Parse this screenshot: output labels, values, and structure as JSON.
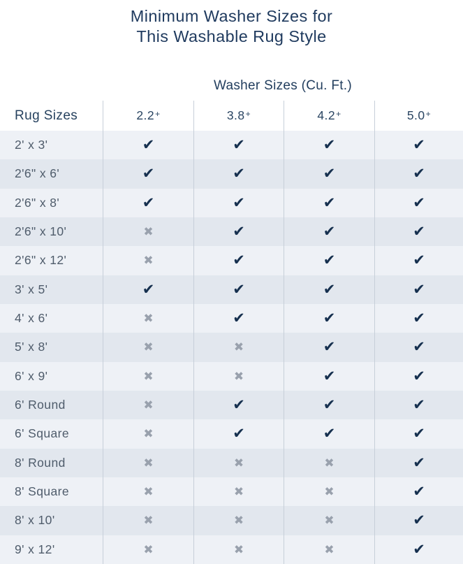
{
  "title": {
    "line1": "Minimum Washer Sizes for",
    "line2": "This Washable Rug Style"
  },
  "table": {
    "group_header": "Washer Sizes (Cu. Ft.)",
    "row_header": "Rug Sizes",
    "columns": [
      {
        "num": "2.2",
        "plus": "+"
      },
      {
        "num": "3.8",
        "plus": "+"
      },
      {
        "num": "4.2",
        "plus": "+"
      },
      {
        "num": "5.0",
        "plus": "+"
      }
    ],
    "marks": {
      "check_glyph": "✔",
      "x_glyph": "✖"
    }
  },
  "colors": {
    "title_navy": "#1f3a5e",
    "check_navy": "#16304f",
    "x_gray": "#99a1ad",
    "row_light": "#eef1f6",
    "row_dark": "#e2e7ee",
    "divider": "#c7cfd9"
  },
  "chart_data": {
    "type": "table",
    "title": "Minimum Washer Sizes for This Washable Rug Style",
    "group_header": "Washer Sizes (Cu. Ft.)",
    "columns": [
      "Rug Sizes",
      "2.2+",
      "3.8+",
      "4.2+",
      "5.0+"
    ],
    "cell_legend": {
      "true": "compatible (check mark)",
      "false": "not compatible (x mark)"
    },
    "rows": [
      [
        "2' x 3'",
        true,
        true,
        true,
        true
      ],
      [
        "2'6\" x 6'",
        true,
        true,
        true,
        true
      ],
      [
        "2'6\" x 8'",
        true,
        true,
        true,
        true
      ],
      [
        "2'6\" x 10'",
        false,
        true,
        true,
        true
      ],
      [
        "2'6\" x 12'",
        false,
        true,
        true,
        true
      ],
      [
        "3' x 5'",
        true,
        true,
        true,
        true
      ],
      [
        "4' x 6'",
        false,
        true,
        true,
        true
      ],
      [
        "5' x 8'",
        false,
        false,
        true,
        true
      ],
      [
        "6' x 9'",
        false,
        false,
        true,
        true
      ],
      [
        "6' Round",
        false,
        true,
        true,
        true
      ],
      [
        "6' Square",
        false,
        true,
        true,
        true
      ],
      [
        "8' Round",
        false,
        false,
        false,
        true
      ],
      [
        "8' Square",
        false,
        false,
        false,
        true
      ],
      [
        "8' x 10'",
        false,
        false,
        false,
        true
      ],
      [
        "9' x 12'",
        false,
        false,
        false,
        true
      ]
    ]
  }
}
